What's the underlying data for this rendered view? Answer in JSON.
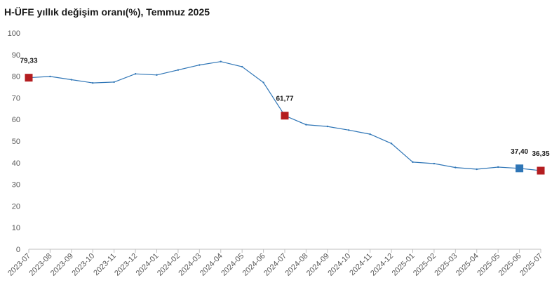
{
  "chart_data": {
    "type": "line",
    "title": "H-ÜFE yıllık değişim oranı(%), Temmuz 2025",
    "xlabel": "",
    "ylabel": "",
    "ylim": [
      0,
      100
    ],
    "yticks": [
      0,
      10,
      20,
      30,
      40,
      50,
      60,
      70,
      80,
      90,
      100
    ],
    "grid": false,
    "legend": "none",
    "categories": [
      "2023-07",
      "2023-08",
      "2023-09",
      "2023-10",
      "2023-11",
      "2023-12",
      "2024-01",
      "2024-02",
      "2024-03",
      "2024-04",
      "2024-05",
      "2024-06",
      "2024-07",
      "2024-08",
      "2024-09",
      "2024-10",
      "2024-11",
      "2024-12",
      "2025-01",
      "2025-02",
      "2025-03",
      "2025-04",
      "2025-05",
      "2025-06",
      "2025-07"
    ],
    "series": [
      {
        "values": [
          79.33,
          79.9,
          78.4,
          76.9,
          77.3,
          81.1,
          80.6,
          82.9,
          85.2,
          86.8,
          84.4,
          77.1,
          61.77,
          57.6,
          56.8,
          55.1,
          53.2,
          48.9,
          40.3,
          39.6,
          37.8,
          37.0,
          38.0,
          37.4,
          36.35
        ],
        "color": "#2e75b6"
      }
    ],
    "highlights": [
      {
        "index": 0,
        "label": "79,33",
        "color": "#b41d20"
      },
      {
        "index": 12,
        "label": "61,77",
        "color": "#b41d20"
      },
      {
        "index": 23,
        "label": "37,40",
        "color": "#2e75b6"
      },
      {
        "index": 24,
        "label": "36,35",
        "color": "#b41d20"
      }
    ]
  }
}
